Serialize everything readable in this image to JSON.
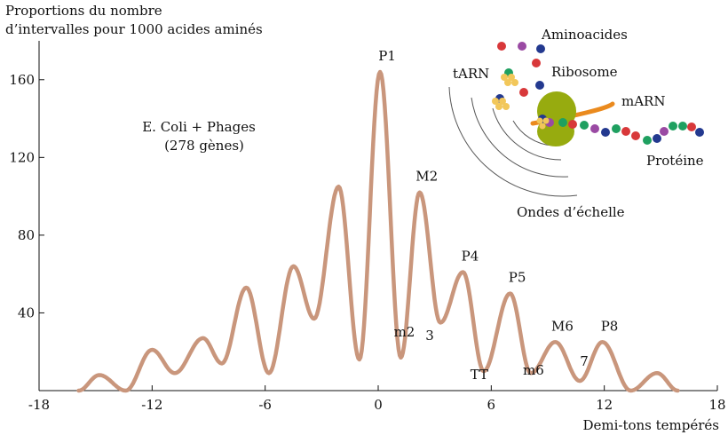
{
  "chart_data": {
    "type": "line",
    "ylabel_lines": [
      "Proportions du nombre",
      "d’intervalles pour 1000 acides aminés"
    ],
    "xlabel": "Demi-tons tempérés",
    "subtitle_lines": [
      "E. Coli + Phages",
      "(278 gènes)"
    ],
    "xlim": [
      -18,
      18
    ],
    "ylim": [
      0,
      180
    ],
    "xticks": [
      "-18",
      "-12",
      "-6",
      "0",
      "6",
      "12",
      "18"
    ],
    "yticks": [
      "40",
      "80",
      "120",
      "160"
    ],
    "grid": false,
    "series_color": "#c9967c",
    "peaks": [
      {
        "x": -14.8,
        "y": 8,
        "label": ""
      },
      {
        "x": -12.0,
        "y": 21,
        "label": ""
      },
      {
        "x": -9.3,
        "y": 27,
        "label": ""
      },
      {
        "x": -7.0,
        "y": 53,
        "label": ""
      },
      {
        "x": -4.5,
        "y": 64,
        "label": ""
      },
      {
        "x": -2.1,
        "y": 105,
        "label": ""
      },
      {
        "x": 0.1,
        "y": 164,
        "label": "P1"
      },
      {
        "x": 2.2,
        "y": 102,
        "label": "M2"
      },
      {
        "x": 4.5,
        "y": 61,
        "label": "P4"
      },
      {
        "x": 7.0,
        "y": 50,
        "label": "P5"
      },
      {
        "x": 9.4,
        "y": 25,
        "label": "M6"
      },
      {
        "x": 11.9,
        "y": 25,
        "label": "P8"
      },
      {
        "x": 14.8,
        "y": 9,
        "label": ""
      }
    ],
    "troughs": [
      {
        "x": -13.4,
        "y": 0,
        "label": ""
      },
      {
        "x": -10.8,
        "y": 9,
        "label": ""
      },
      {
        "x": -8.3,
        "y": 14,
        "label": ""
      },
      {
        "x": -5.8,
        "y": 9,
        "label": ""
      },
      {
        "x": -3.4,
        "y": 37,
        "label": ""
      },
      {
        "x": -1.0,
        "y": 16,
        "label": ""
      },
      {
        "x": 1.2,
        "y": 17,
        "label": "m2"
      },
      {
        "x": 3.3,
        "y": 35,
        "label": "3"
      },
      {
        "x": 5.6,
        "y": 10,
        "label": "TT"
      },
      {
        "x": 8.1,
        "y": 9,
        "label": "m6"
      },
      {
        "x": 10.7,
        "y": 5,
        "label": "7"
      },
      {
        "x": 13.4,
        "y": 0,
        "label": ""
      }
    ]
  },
  "inset": {
    "labels": {
      "aminoacides": "Aminoacides",
      "tarn": "tARN",
      "ribosome": "Ribosome",
      "marn": "mARN",
      "proteine": "Protéine",
      "ondes": "Ondes d’échelle"
    },
    "colors": {
      "red": "#d8383a",
      "purple": "#9a4aa3",
      "navy": "#23398f",
      "green": "#1fa060",
      "ribosome": "#97ab0f",
      "mrna": "#ea8a1e",
      "trna": "#f2c75a"
    }
  }
}
